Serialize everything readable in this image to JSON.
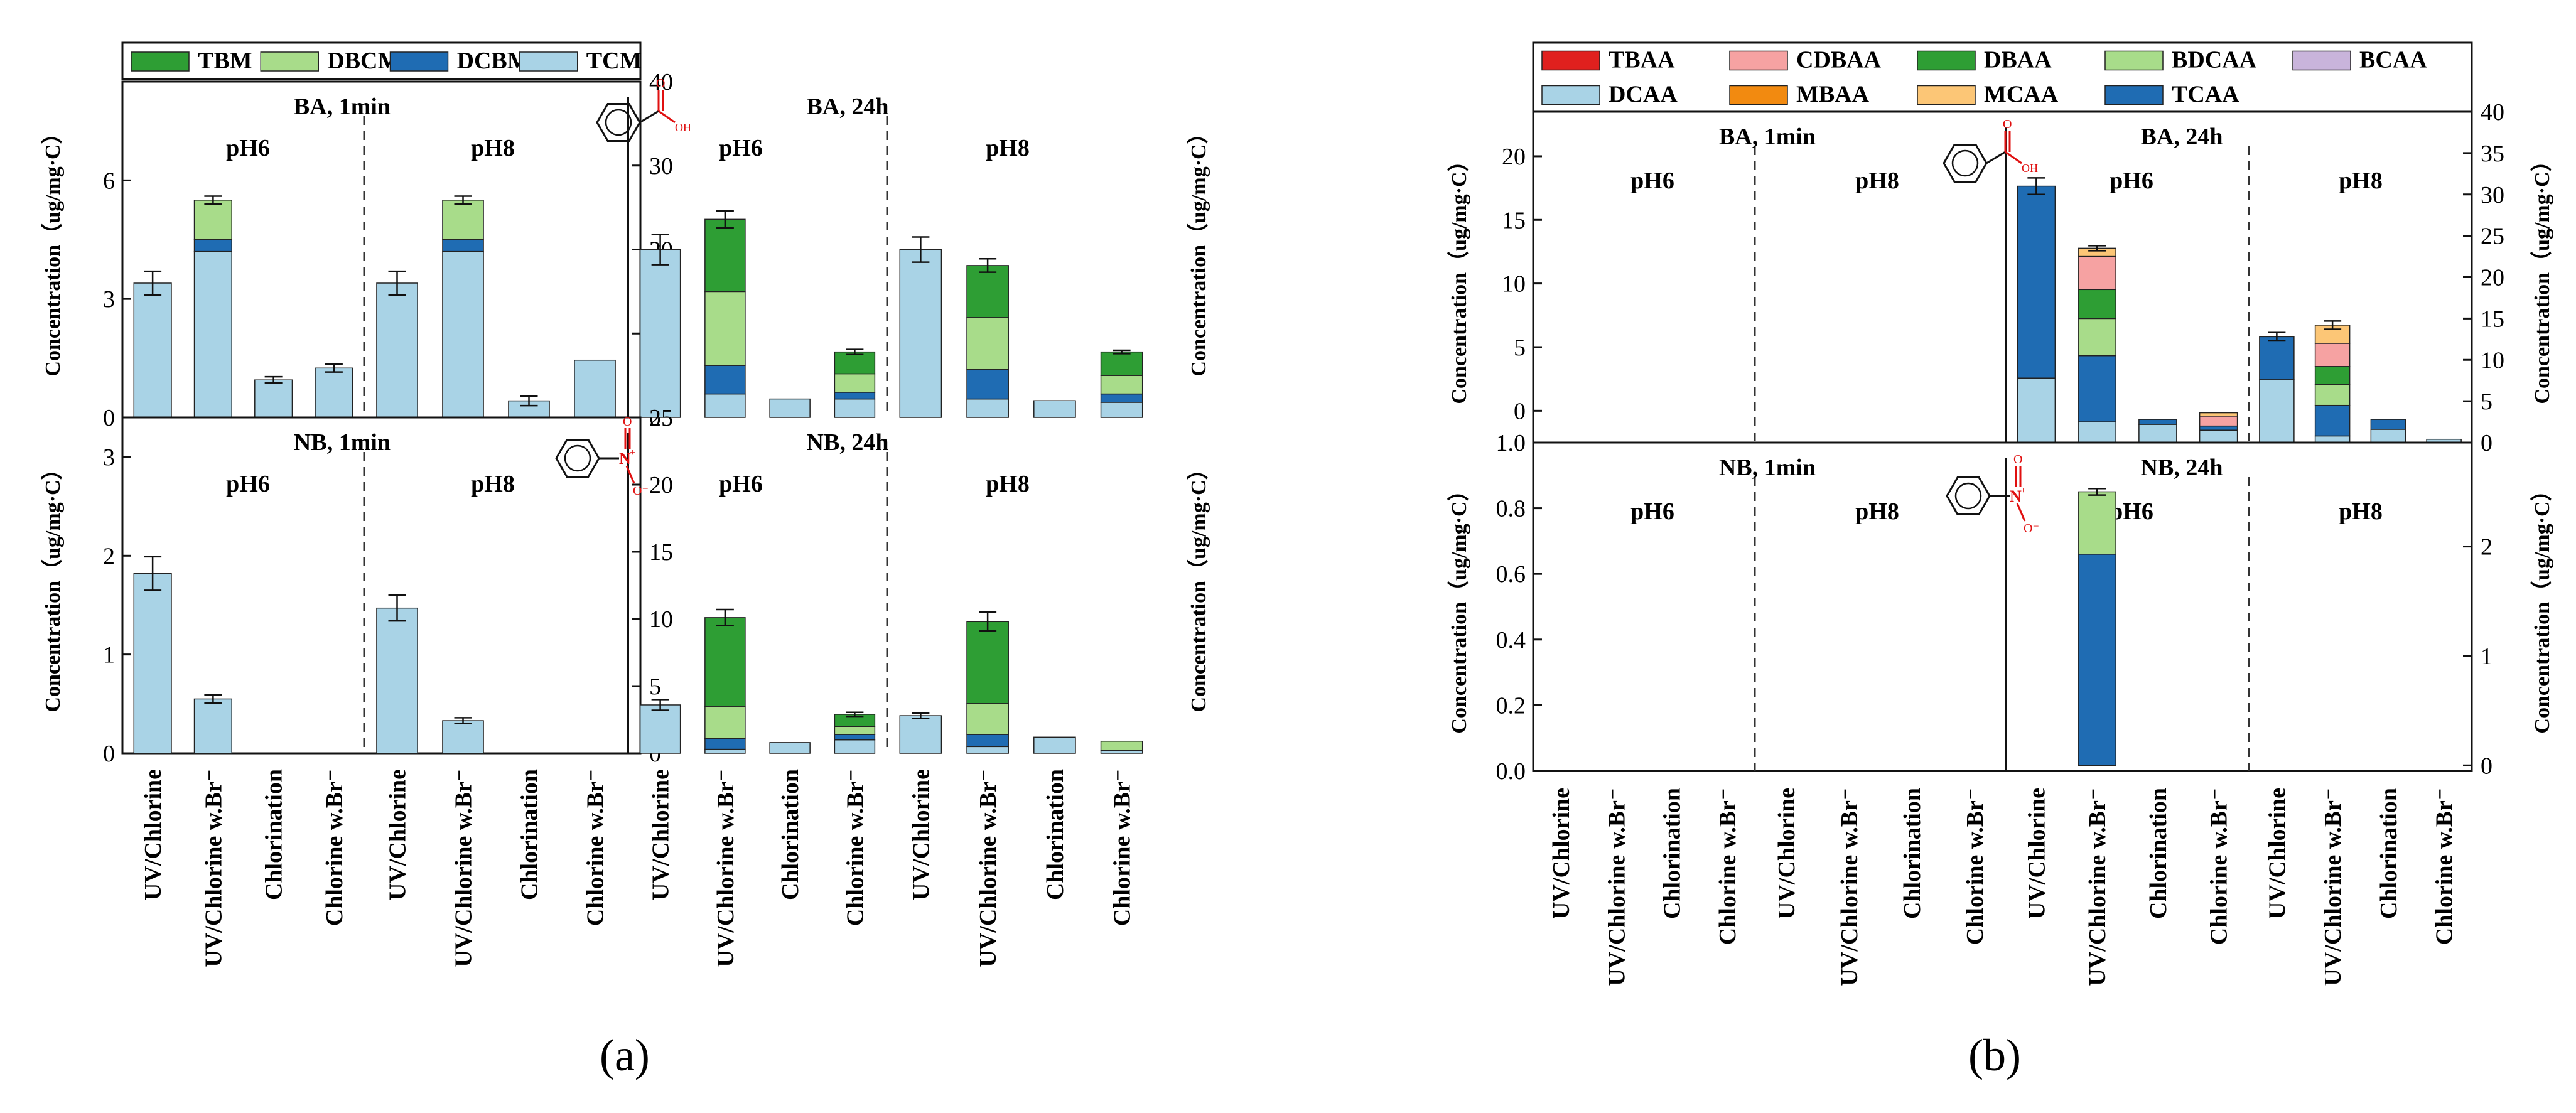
{
  "colors": {
    "TBM": "#2e9e34",
    "DBCM": "#a8dc8a",
    "DCBM": "#1f6cb3",
    "TCM": "#a9d3e6",
    "TBAA": "#e0201e",
    "CDBAA": "#f6a2a2",
    "DBAA": "#2e9e34",
    "BDCAA": "#a8dc8a",
    "BCAA": "#c9b4db",
    "DCAA": "#a9d3e6",
    "MBAA": "#f28a10",
    "MCAA": "#fcc676",
    "TCAA": "#1f6cb3",
    "molecule_red": "#e01010"
  },
  "categories": [
    "UV/Chlorine",
    "UV/Chlorine w.Br⁻",
    "Chlorination",
    "Chlorine w.Br⁻"
  ],
  "panel_labels": {
    "a": "(a)",
    "b": "(b)"
  },
  "chart_data": [
    {
      "id": "a",
      "type": "bar",
      "stacked": true,
      "title": "(a)",
      "legend": [
        "TBM",
        "DBCM",
        "DCBM",
        "TCM"
      ],
      "stack_order": [
        "TCM",
        "DCBM",
        "DBCM",
        "TBM"
      ],
      "ylabel": "Concentration（ug/mg·C）",
      "rows": [
        {
          "compound": "BA",
          "molecule": "benzoic",
          "ylim_left": [
            0,
            8.5
          ],
          "yticks_left": [
            0,
            3,
            6
          ],
          "ylim_right": [
            0,
            40
          ],
          "yticks_right": [
            0,
            10,
            20,
            30,
            40
          ],
          "groups": [
            {
              "title": "BA, 1min",
              "ph": "pH6",
              "axis": "left",
              "bars": [
                {
                  "values": {
                    "TCM": 3.4
                  },
                  "err": 0.3
                },
                {
                  "values": {
                    "TCM": 4.2,
                    "DCBM": 0.3,
                    "DBCM": 1.0
                  },
                  "err": 0.1
                },
                {
                  "values": {
                    "TCM": 0.95
                  },
                  "err": 0.08
                },
                {
                  "values": {
                    "TCM": 1.25
                  },
                  "err": 0.1
                }
              ]
            },
            {
              "title": "",
              "ph": "pH8",
              "axis": "left",
              "bars": [
                {
                  "values": {
                    "TCM": 3.4
                  },
                  "err": 0.3
                },
                {
                  "values": {
                    "TCM": 4.2,
                    "DCBM": 0.3,
                    "DBCM": 1.0
                  },
                  "err": 0.1
                },
                {
                  "values": {
                    "TCM": 0.42
                  },
                  "err": 0.12
                },
                {
                  "values": {
                    "TCM": 1.45
                  }
                }
              ]
            },
            {
              "title": "BA, 24h",
              "ph": "pH6",
              "axis": "right",
              "bars": [
                {
                  "values": {
                    "TCM": 20
                  },
                  "err": 1.8
                },
                {
                  "values": {
                    "TCM": 2.8,
                    "DCBM": 3.4,
                    "DBCM": 8.8,
                    "TBM": 8.6
                  },
                  "err": 1.0
                },
                {
                  "values": {
                    "TCM": 2.2
                  }
                },
                {
                  "values": {
                    "TCM": 2.2,
                    "DCBM": 0.8,
                    "DBCM": 2.2,
                    "TBM": 2.6
                  },
                  "err": 0.3
                }
              ]
            },
            {
              "title": "",
              "ph": "pH8",
              "axis": "right",
              "bars": [
                {
                  "values": {
                    "TCM": 20
                  },
                  "err": 1.5
                },
                {
                  "values": {
                    "TCM": 2.2,
                    "DCBM": 3.5,
                    "DBCM": 6.2,
                    "TBM": 6.2
                  },
                  "err": 0.8
                },
                {
                  "values": {
                    "TCM": 2.0
                  }
                },
                {
                  "values": {
                    "TCM": 1.8,
                    "DCBM": 1.0,
                    "DBCM": 2.2,
                    "TBM": 2.8
                  },
                  "err": 0.2
                }
              ]
            }
          ]
        },
        {
          "compound": "NB",
          "molecule": "nitro",
          "ylim_left": [
            0,
            3.4
          ],
          "yticks_left": [
            0,
            1,
            2,
            3
          ],
          "ylim_right": [
            0,
            25
          ],
          "yticks_right": [
            0,
            5,
            10,
            15,
            20,
            25
          ],
          "groups": [
            {
              "title": "NB, 1min",
              "ph": "pH6",
              "axis": "left",
              "bars": [
                {
                  "values": {
                    "TCM": 1.82
                  },
                  "err": 0.17
                },
                {
                  "values": {
                    "TCM": 0.55
                  },
                  "err": 0.04
                },
                {
                  "values": {}
                },
                {
                  "values": {}
                }
              ]
            },
            {
              "title": "",
              "ph": "pH8",
              "axis": "left",
              "bars": [
                {
                  "values": {
                    "TCM": 1.47
                  },
                  "err": 0.13
                },
                {
                  "values": {
                    "TCM": 0.33
                  },
                  "err": 0.03
                },
                {
                  "values": {}
                },
                {
                  "values": {}
                }
              ]
            },
            {
              "title": "NB, 24h",
              "ph": "pH6",
              "axis": "right",
              "bars": [
                {
                  "values": {
                    "TCM": 3.6
                  },
                  "err": 0.4
                },
                {
                  "values": {
                    "TCM": 0.3,
                    "DCBM": 0.8,
                    "DBCM": 2.4,
                    "TBM": 6.6
                  },
                  "err": 0.6
                },
                {
                  "values": {
                    "TCM": 0.8
                  }
                },
                {
                  "values": {
                    "TCM": 1.0,
                    "DCBM": 0.4,
                    "DBCM": 0.6,
                    "TBM": 0.9
                  },
                  "err": 0.15
                }
              ]
            },
            {
              "title": "",
              "ph": "pH8",
              "axis": "right",
              "bars": [
                {
                  "values": {
                    "TCM": 2.8
                  },
                  "err": 0.2
                },
                {
                  "values": {
                    "TCM": 0.5,
                    "DCBM": 0.9,
                    "DBCM": 2.3,
                    "TBM": 6.1
                  },
                  "err": 0.7
                },
                {
                  "values": {
                    "TCM": 1.2
                  }
                },
                {
                  "values": {
                    "TCM": 0.2,
                    "DBCM": 0.7
                  }
                }
              ]
            }
          ]
        }
      ]
    },
    {
      "id": "b",
      "type": "bar",
      "stacked": true,
      "title": "(b)",
      "legend": [
        "TBAA",
        "CDBAA",
        "DBAA",
        "BDCAA",
        "BCAA",
        "DCAA",
        "MBAA",
        "MCAA",
        "TCAA"
      ],
      "stack_order": [
        "DCAA",
        "TCAA",
        "BDCAA",
        "DBAA",
        "CDBAA",
        "MCAA",
        "MBAA",
        "BCAA",
        "TBAA"
      ],
      "ylabel": "Concentration（ug/mg·C）",
      "rows": [
        {
          "compound": "BA",
          "molecule": "benzoic",
          "ylim_left": [
            -2.5,
            23.5
          ],
          "yticks_left": [
            0,
            5,
            10,
            15,
            20
          ],
          "ylim_right": [
            0,
            40
          ],
          "yticks_right": [
            0,
            5,
            10,
            15,
            20,
            25,
            30,
            35,
            40
          ],
          "groups": [
            {
              "title": "BA, 1min",
              "ph": "pH6",
              "axis": "left",
              "bars": [
                {
                  "values": {}
                },
                {
                  "values": {}
                },
                {
                  "values": {}
                },
                {
                  "values": {}
                }
              ]
            },
            {
              "title": "",
              "ph": "pH8",
              "axis": "left",
              "bars": [
                {
                  "values": {}
                },
                {
                  "values": {}
                },
                {
                  "values": {}
                },
                {
                  "values": {}
                }
              ]
            },
            {
              "title": "BA, 24h",
              "ph": "pH6",
              "axis": "right",
              "bars": [
                {
                  "values": {
                    "DCAA": 7.8,
                    "TCAA": 23.2
                  },
                  "err": 1.0
                },
                {
                  "values": {
                    "DCAA": 2.5,
                    "TCAA": 8.0,
                    "BDCAA": 4.5,
                    "DBAA": 3.5,
                    "CDBAA": 4.0,
                    "MCAA": 1.0
                  },
                  "err": 0.3
                },
                {
                  "values": {
                    "DCAA": 2.2,
                    "TCAA": 0.6
                  }
                },
                {
                  "values": {
                    "DCAA": 1.5,
                    "TCAA": 0.5,
                    "CDBAA": 1.2,
                    "MCAA": 0.4
                  }
                }
              ]
            },
            {
              "title": "",
              "ph": "pH8",
              "axis": "right",
              "bars": [
                {
                  "values": {
                    "DCAA": 7.6,
                    "TCAA": 5.2
                  },
                  "err": 0.5
                },
                {
                  "values": {
                    "DCAA": 0.8,
                    "TCAA": 3.7,
                    "BDCAA": 2.5,
                    "DBAA": 2.2,
                    "CDBAA": 2.8,
                    "MCAA": 2.2
                  },
                  "err": 0.5
                },
                {
                  "values": {
                    "DCAA": 1.6,
                    "TCAA": 1.2
                  }
                },
                {
                  "values": {
                    "DCAA": 0.4
                  }
                }
              ]
            }
          ]
        },
        {
          "compound": "NB",
          "molecule": "nitro",
          "ylim_left": [
            0,
            1.0
          ],
          "yticks_left": [
            0.0,
            0.2,
            0.4,
            0.6,
            0.8,
            1.0
          ],
          "ylim_right": [
            -0.05,
            2.95
          ],
          "yticks_right": [
            0,
            1,
            2
          ],
          "groups": [
            {
              "title": "NB, 1min",
              "ph": "pH6",
              "axis": "left",
              "bars": [
                {
                  "values": {}
                },
                {
                  "values": {}
                },
                {
                  "values": {}
                },
                {
                  "values": {}
                }
              ]
            },
            {
              "title": "",
              "ph": "pH8",
              "axis": "left",
              "bars": [
                {
                  "values": {}
                },
                {
                  "values": {}
                },
                {
                  "values": {}
                },
                {
                  "values": {}
                }
              ]
            },
            {
              "title": "NB, 24h",
              "ph": "pH6",
              "axis": "right",
              "bars": [
                {
                  "values": {}
                },
                {
                  "values": {
                    "TCAA": 1.93,
                    "BDCAA": 0.57
                  },
                  "err": 0.03
                },
                {
                  "values": {}
                },
                {
                  "values": {}
                }
              ]
            },
            {
              "title": "",
              "ph": "pH8",
              "axis": "right",
              "bars": [
                {
                  "values": {}
                },
                {
                  "values": {}
                },
                {
                  "values": {}
                },
                {
                  "values": {}
                }
              ]
            }
          ]
        }
      ]
    }
  ]
}
